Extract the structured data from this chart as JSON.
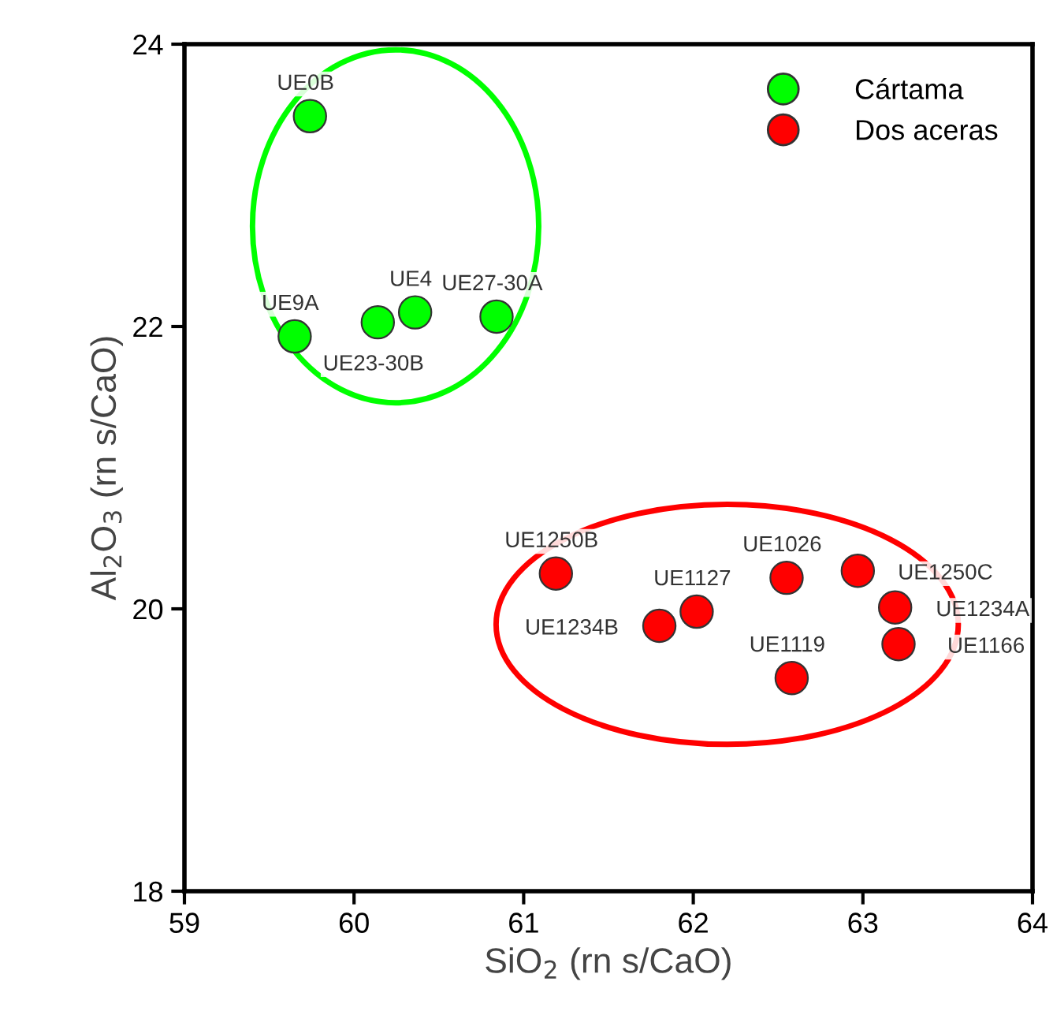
{
  "chart_data": {
    "type": "scatter",
    "xlabel": "SiO$_{2}$ (rn s/CaO)",
    "ylabel": "Al$_{2}$O$_{3}$ (rn s/CaO)",
    "xlim": [
      59,
      64
    ],
    "xticks": [
      59,
      60,
      61,
      62,
      63,
      64
    ],
    "ylim": [
      18,
      24
    ],
    "yticks": [
      18,
      20,
      22,
      24
    ],
    "grid": false,
    "legend": "top right",
    "marker": "circle",
    "series": [
      {
        "name": "Cártama",
        "color": "#00ff00",
        "x": [
          59.74,
          59.65,
          60.14,
          60.36,
          60.84
        ],
        "values": [
          23.49,
          21.93,
          22.03,
          22.1,
          22.07
        ]
      },
      {
        "name": "Dos aceras",
        "color": "#ff0000",
        "x": [
          61.19,
          61.8,
          62.02,
          62.55,
          62.97,
          63.19,
          63.21,
          62.58
        ],
        "values": [
          20.25,
          19.88,
          19.98,
          20.22,
          20.27,
          20.01,
          19.75,
          19.51
        ]
      }
    ],
    "annotations": [
      {
        "text": "UE0B",
        "x": 59.74,
        "y": 23.49
      },
      {
        "text": "UE9A",
        "x": 59.65,
        "y": 21.93
      },
      {
        "text": "UE23-30B",
        "x": 60.14,
        "y": 22.03
      },
      {
        "text": "UE4",
        "x": 60.36,
        "y": 22.1
      },
      {
        "text": "UE27-30A",
        "x": 60.84,
        "y": 22.07
      },
      {
        "text": "UE1250B",
        "x": 61.19,
        "y": 20.25
      },
      {
        "text": "UE1234B",
        "x": 61.8,
        "y": 19.88
      },
      {
        "text": "UE1127",
        "x": 62.02,
        "y": 19.98
      },
      {
        "text": "UE1026",
        "x": 62.55,
        "y": 20.22
      },
      {
        "text": "UE1250C",
        "x": 62.97,
        "y": 20.27
      },
      {
        "text": "UE1234A",
        "x": 63.19,
        "y": 20.01
      },
      {
        "text": "UE1166",
        "x": 63.21,
        "y": 19.75
      },
      {
        "text": "UE1119",
        "x": 62.58,
        "y": 19.51
      }
    ]
  }
}
